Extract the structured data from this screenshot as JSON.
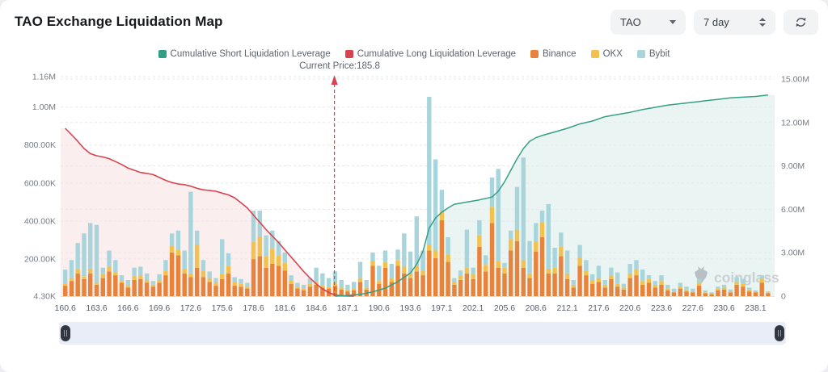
{
  "header": {
    "title": "TAO Exchange Liquidation Map",
    "coin_select": {
      "value": "TAO"
    },
    "period_select": {
      "value": "7 day"
    }
  },
  "legend": {
    "items": [
      {
        "label": "Cumulative Short Liquidation Leverage",
        "color": "#2f9e84"
      },
      {
        "label": "Cumulative Long Liquidation Leverage",
        "color": "#d8434f"
      },
      {
        "label": "Binance",
        "color": "#e8833b"
      },
      {
        "label": "OKX",
        "color": "#f2c14e"
      },
      {
        "label": "Bybit",
        "color": "#a7d5db"
      }
    ]
  },
  "current_price": {
    "label": "Current Price:185.8",
    "value": 185.8
  },
  "watermark": {
    "text": "coinglass"
  },
  "chart_data": {
    "type": "bar",
    "subtype": "stacked bars (left axis, K) + two cumulative area lines (right axis, M)",
    "x_labels": [
      "160.6",
      "163.6",
      "166.6",
      "169.6",
      "172.6",
      "175.6",
      "178.6",
      "181.6",
      "184.6",
      "187.1",
      "190.6",
      "193.6",
      "197.1",
      "202.1",
      "205.6",
      "208.6",
      "212.1",
      "217.6",
      "220.6",
      "223.6",
      "227.6",
      "230.6",
      "238.1"
    ],
    "label_every_n_bars": 5,
    "left_axis": {
      "ticks": [
        {
          "label": "1.16M",
          "k": 1160
        },
        {
          "label": "1.00M",
          "k": 1000
        },
        {
          "label": "800.00K",
          "k": 800
        },
        {
          "label": "600.00K",
          "k": 600
        },
        {
          "label": "400.00K",
          "k": 400
        },
        {
          "label": "200.00K",
          "k": 200
        },
        {
          "label": "4.30K",
          "k": 4.3
        }
      ],
      "range_k": [
        4.3,
        1160
      ]
    },
    "right_axis": {
      "ticks": [
        {
          "label": "15.00M",
          "m": 15
        },
        {
          "label": "12.00M",
          "m": 12
        },
        {
          "label": "9.00M",
          "m": 9
        },
        {
          "label": "6.00M",
          "m": 6
        },
        {
          "label": "3.00M",
          "m": 3
        },
        {
          "label": "0",
          "m": 0
        }
      ],
      "range_m": [
        0,
        15
      ]
    },
    "bar_series_order": [
      "Binance",
      "OKX",
      "Bybit"
    ],
    "bar_colors": {
      "Binance": "#e8833b",
      "OKX": "#f2c14e",
      "Bybit": "#a7d5db"
    },
    "bars_k": [
      [
        55,
        10,
        75
      ],
      [
        80,
        15,
        95
      ],
      [
        120,
        20,
        140
      ],
      [
        90,
        15,
        225
      ],
      [
        120,
        25,
        240
      ],
      [
        60,
        10,
        305
      ],
      [
        95,
        20,
        35
      ],
      [
        130,
        25,
        85
      ],
      [
        110,
        15,
        65
      ],
      [
        70,
        10,
        30
      ],
      [
        45,
        10,
        30
      ],
      [
        85,
        20,
        45
      ],
      [
        90,
        20,
        45
      ],
      [
        70,
        15,
        35
      ],
      [
        50,
        10,
        20
      ],
      [
        70,
        15,
        30
      ],
      [
        110,
        25,
        55
      ],
      [
        230,
        35,
        65
      ],
      [
        215,
        30,
        100
      ],
      [
        120,
        25,
        95
      ],
      [
        100,
        20,
        430
      ],
      [
        150,
        120,
        75
      ],
      [
        100,
        35,
        55
      ],
      [
        75,
        20,
        35
      ],
      [
        55,
        15,
        25
      ],
      [
        90,
        25,
        185
      ],
      [
        120,
        40,
        65
      ],
      [
        55,
        20,
        25
      ],
      [
        50,
        15,
        25
      ],
      [
        40,
        10,
        20
      ],
      [
        195,
        90,
        165
      ],
      [
        210,
        100,
        140
      ],
      [
        150,
        60,
        110
      ],
      [
        170,
        80,
        95
      ],
      [
        160,
        55,
        75
      ],
      [
        135,
        40,
        55
      ],
      [
        65,
        20,
        25
      ],
      [
        40,
        10,
        20
      ],
      [
        30,
        10,
        20
      ],
      [
        50,
        15,
        30
      ],
      [
        60,
        15,
        75
      ],
      [
        45,
        10,
        65
      ],
      [
        40,
        10,
        45
      ],
      [
        55,
        15,
        60
      ],
      [
        35,
        10,
        40
      ],
      [
        25,
        10,
        25
      ],
      [
        30,
        10,
        35
      ],
      [
        75,
        20,
        85
      ],
      [
        35,
        10,
        40
      ],
      [
        160,
        25,
        45
      ],
      [
        65,
        15,
        80
      ],
      [
        150,
        30,
        60
      ],
      [
        75,
        20,
        75
      ],
      [
        160,
        30,
        55
      ],
      [
        120,
        35,
        175
      ],
      [
        95,
        25,
        115
      ],
      [
        130,
        30,
        260
      ],
      [
        110,
        25,
        105
      ],
      [
        240,
        30,
        780
      ],
      [
        200,
        40,
        480
      ],
      [
        400,
        45,
        115
      ],
      [
        180,
        40,
        90
      ],
      [
        60,
        15,
        20
      ],
      [
        85,
        25,
        25
      ],
      [
        120,
        30,
        200
      ],
      [
        90,
        25,
        35
      ],
      [
        260,
        60,
        80
      ],
      [
        130,
        35,
        50
      ],
      [
        385,
        85,
        155
      ],
      [
        150,
        35,
        485
      ],
      [
        120,
        30,
        25
      ],
      [
        240,
        60,
        45
      ],
      [
        290,
        60,
        225
      ],
      [
        150,
        40,
        540
      ],
      [
        95,
        25,
        170
      ],
      [
        235,
        55,
        95
      ],
      [
        310,
        80,
        60
      ],
      [
        120,
        25,
        340
      ],
      [
        120,
        30,
        105
      ],
      [
        210,
        50,
        75
      ],
      [
        90,
        30,
        120
      ],
      [
        45,
        15,
        25
      ],
      [
        160,
        40,
        70
      ],
      [
        110,
        25,
        55
      ],
      [
        65,
        20,
        30
      ],
      [
        75,
        20,
        65
      ],
      [
        45,
        15,
        25
      ],
      [
        90,
        20,
        40
      ],
      [
        50,
        15,
        60
      ],
      [
        35,
        10,
        20
      ],
      [
        95,
        25,
        50
      ],
      [
        110,
        30,
        50
      ],
      [
        60,
        20,
        60
      ],
      [
        70,
        20,
        20
      ],
      [
        45,
        15,
        20
      ],
      [
        60,
        20,
        30
      ],
      [
        30,
        10,
        20
      ],
      [
        20,
        5,
        15
      ],
      [
        40,
        10,
        20
      ],
      [
        25,
        10,
        15
      ],
      [
        20,
        5,
        15
      ],
      [
        55,
        15,
        20
      ],
      [
        15,
        5,
        10
      ],
      [
        10,
        5,
        5
      ],
      [
        30,
        10,
        10
      ],
      [
        35,
        10,
        15
      ],
      [
        20,
        5,
        10
      ],
      [
        60,
        15,
        25
      ],
      [
        50,
        15,
        25
      ],
      [
        25,
        10,
        10
      ],
      [
        20,
        5,
        5
      ],
      [
        70,
        20,
        20
      ],
      [
        15,
        5,
        5
      ]
    ],
    "long_line_m": [
      [
        0,
        11.6
      ],
      [
        1,
        11.15
      ],
      [
        2,
        10.7
      ],
      [
        3,
        10.2
      ],
      [
        4,
        9.85
      ],
      [
        5,
        9.7
      ],
      [
        6,
        9.62
      ],
      [
        7,
        9.5
      ],
      [
        8,
        9.3
      ],
      [
        9,
        9.1
      ],
      [
        10,
        8.85
      ],
      [
        11,
        8.7
      ],
      [
        12,
        8.55
      ],
      [
        13,
        8.48
      ],
      [
        14,
        8.4
      ],
      [
        15,
        8.2
      ],
      [
        16,
        8.0
      ],
      [
        17,
        7.85
      ],
      [
        18,
        7.75
      ],
      [
        19,
        7.7
      ],
      [
        20,
        7.6
      ],
      [
        21,
        7.45
      ],
      [
        22,
        7.35
      ],
      [
        23,
        7.3
      ],
      [
        24,
        7.25
      ],
      [
        25,
        7.12
      ],
      [
        26,
        7.0
      ],
      [
        27,
        6.8
      ],
      [
        28,
        6.45
      ],
      [
        29,
        6.1
      ],
      [
        30,
        5.6
      ],
      [
        31,
        5.1
      ],
      [
        32,
        4.6
      ],
      [
        33,
        4.15
      ],
      [
        34,
        3.7
      ],
      [
        35,
        3.2
      ],
      [
        36,
        2.7
      ],
      [
        37,
        2.2
      ],
      [
        38,
        1.7
      ],
      [
        39,
        1.25
      ],
      [
        40,
        0.85
      ],
      [
        41,
        0.5
      ],
      [
        42,
        0.25
      ],
      [
        43,
        0.08
      ],
      [
        44,
        0.02
      ],
      [
        46,
        0
      ]
    ],
    "short_line_m": [
      [
        43,
        0
      ],
      [
        45,
        0.05
      ],
      [
        47,
        0.12
      ],
      [
        49,
        0.3
      ],
      [
        51,
        0.55
      ],
      [
        53,
        1.0
      ],
      [
        55,
        1.6
      ],
      [
        56,
        2.2
      ],
      [
        57,
        3.1
      ],
      [
        58,
        4.7
      ],
      [
        59,
        5.4
      ],
      [
        60,
        5.8
      ],
      [
        61,
        6.1
      ],
      [
        62,
        6.35
      ],
      [
        64,
        6.5
      ],
      [
        66,
        6.65
      ],
      [
        68,
        6.85
      ],
      [
        69,
        7.25
      ],
      [
        70,
        7.9
      ],
      [
        71,
        8.7
      ],
      [
        72,
        9.5
      ],
      [
        73,
        10.2
      ],
      [
        74,
        10.7
      ],
      [
        75,
        10.95
      ],
      [
        76,
        11.1
      ],
      [
        78,
        11.35
      ],
      [
        80,
        11.6
      ],
      [
        82,
        11.9
      ],
      [
        84,
        12.1
      ],
      [
        86,
        12.4
      ],
      [
        88,
        12.55
      ],
      [
        90,
        12.7
      ],
      [
        92,
        12.9
      ],
      [
        94,
        13.05
      ],
      [
        96,
        13.2
      ],
      [
        98,
        13.3
      ],
      [
        100,
        13.4
      ],
      [
        102,
        13.5
      ],
      [
        104,
        13.6
      ],
      [
        106,
        13.7
      ],
      [
        108,
        13.75
      ],
      [
        110,
        13.8
      ],
      [
        112,
        13.9
      ]
    ],
    "line_colors": {
      "short": "#359f85",
      "long": "#d8434f"
    },
    "current_price_bar_pos": 42.9
  }
}
